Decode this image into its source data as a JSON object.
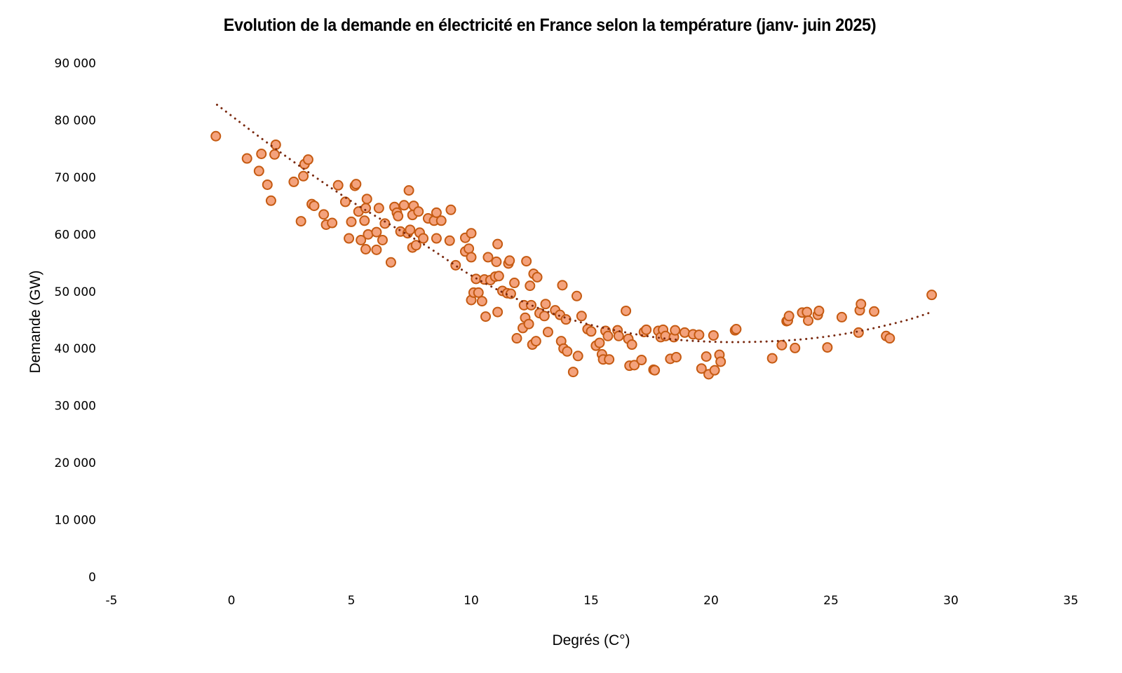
{
  "chart_data": {
    "type": "scatter",
    "title": "Evolution de la demande en électricité en France selon la température (janv- juin 2025)",
    "xlabel": "Degrés (C°)",
    "ylabel": "Demande (GW)",
    "xlim": [
      -5,
      35
    ],
    "ylim": [
      0,
      90000
    ],
    "x_ticks": [
      -5,
      0,
      5,
      10,
      15,
      20,
      25,
      30,
      35
    ],
    "x_tick_labels": [
      "-5",
      "0",
      "5",
      "10",
      "15",
      "20",
      "25",
      "30",
      "35"
    ],
    "y_ticks": [
      0,
      10000,
      20000,
      30000,
      40000,
      50000,
      60000,
      70000,
      80000,
      90000
    ],
    "y_tick_labels": [
      "0",
      "10 000",
      "20 000",
      "30 000",
      "40 000",
      "50 000",
      "60 000",
      "70 000",
      "80 000",
      "90 000"
    ],
    "grid": false,
    "legend": "none",
    "colors": {
      "marker_fill": "#f4a27c",
      "marker_stroke": "#c55a11",
      "trendline": "#7a2a10"
    },
    "trendline": {
      "type": "polynomial-2",
      "style": "dotted",
      "x_range": [
        -0.6,
        29.2
      ],
      "points": [
        [
          -0.6,
          82700
        ],
        [
          2,
          74500
        ],
        [
          5,
          65800
        ],
        [
          8,
          58300
        ],
        [
          10,
          52800
        ],
        [
          12,
          48500
        ],
        [
          14,
          45300
        ],
        [
          16,
          43200
        ],
        [
          18,
          41800
        ],
        [
          20,
          41200
        ],
        [
          22,
          41200
        ],
        [
          24,
          41700
        ],
        [
          26,
          42900
        ],
        [
          28,
          44800
        ],
        [
          29.2,
          46400
        ]
      ]
    },
    "series": [
      {
        "name": "Demande",
        "points": [
          [
            -0.65,
            77200
          ],
          [
            0.65,
            73300
          ],
          [
            1.15,
            71100
          ],
          [
            1.25,
            74100
          ],
          [
            1.5,
            68700
          ],
          [
            1.65,
            65900
          ],
          [
            1.8,
            74000
          ],
          [
            1.85,
            75700
          ],
          [
            2.6,
            69200
          ],
          [
            2.9,
            62300
          ],
          [
            3.0,
            70200
          ],
          [
            3.05,
            72300
          ],
          [
            3.2,
            73100
          ],
          [
            3.35,
            65300
          ],
          [
            3.45,
            65000
          ],
          [
            3.85,
            63500
          ],
          [
            3.95,
            61700
          ],
          [
            4.2,
            62000
          ],
          [
            4.45,
            68600
          ],
          [
            4.75,
            65700
          ],
          [
            4.9,
            59300
          ],
          [
            5.0,
            62200
          ],
          [
            5.15,
            68500
          ],
          [
            5.2,
            68800
          ],
          [
            5.3,
            64000
          ],
          [
            5.4,
            59000
          ],
          [
            5.55,
            62400
          ],
          [
            5.6,
            64600
          ],
          [
            5.6,
            57400
          ],
          [
            5.65,
            66200
          ],
          [
            5.7,
            60000
          ],
          [
            6.05,
            60400
          ],
          [
            6.05,
            57300
          ],
          [
            6.15,
            64600
          ],
          [
            6.3,
            59000
          ],
          [
            6.4,
            61900
          ],
          [
            6.65,
            55100
          ],
          [
            6.8,
            64800
          ],
          [
            6.9,
            63800
          ],
          [
            6.95,
            63200
          ],
          [
            7.05,
            60500
          ],
          [
            7.2,
            65100
          ],
          [
            7.35,
            60200
          ],
          [
            7.4,
            67700
          ],
          [
            7.45,
            60800
          ],
          [
            7.55,
            63400
          ],
          [
            7.55,
            57700
          ],
          [
            7.6,
            65000
          ],
          [
            7.7,
            58100
          ],
          [
            7.8,
            64000
          ],
          [
            7.85,
            60300
          ],
          [
            8.0,
            59300
          ],
          [
            8.2,
            62800
          ],
          [
            8.45,
            62400
          ],
          [
            8.55,
            59300
          ],
          [
            8.55,
            63800
          ],
          [
            8.75,
            62400
          ],
          [
            9.1,
            58900
          ],
          [
            9.15,
            64300
          ],
          [
            9.35,
            54600
          ],
          [
            9.75,
            59400
          ],
          [
            9.75,
            57000
          ],
          [
            9.9,
            57500
          ],
          [
            10.0,
            60200
          ],
          [
            10.0,
            56000
          ],
          [
            10.0,
            48500
          ],
          [
            10.1,
            49800
          ],
          [
            10.2,
            52200
          ],
          [
            10.3,
            49800
          ],
          [
            10.45,
            48300
          ],
          [
            10.55,
            52100
          ],
          [
            10.6,
            45600
          ],
          [
            10.7,
            56000
          ],
          [
            10.8,
            52000
          ],
          [
            11.0,
            52600
          ],
          [
            11.05,
            55200
          ],
          [
            11.1,
            58300
          ],
          [
            11.1,
            46400
          ],
          [
            11.15,
            52700
          ],
          [
            11.3,
            50100
          ],
          [
            11.5,
            49700
          ],
          [
            11.55,
            54900
          ],
          [
            11.6,
            55400
          ],
          [
            11.65,
            49600
          ],
          [
            11.8,
            51500
          ],
          [
            11.9,
            41800
          ],
          [
            12.15,
            43600
          ],
          [
            12.2,
            47600
          ],
          [
            12.25,
            45400
          ],
          [
            12.3,
            55300
          ],
          [
            12.4,
            44300
          ],
          [
            12.45,
            51000
          ],
          [
            12.5,
            47600
          ],
          [
            12.55,
            40700
          ],
          [
            12.6,
            53100
          ],
          [
            12.7,
            41300
          ],
          [
            12.75,
            52500
          ],
          [
            12.85,
            46200
          ],
          [
            13.05,
            45700
          ],
          [
            13.1,
            47800
          ],
          [
            13.2,
            42900
          ],
          [
            13.5,
            46700
          ],
          [
            13.7,
            45900
          ],
          [
            13.75,
            41300
          ],
          [
            13.8,
            51100
          ],
          [
            13.85,
            40000
          ],
          [
            13.95,
            45100
          ],
          [
            14.0,
            39500
          ],
          [
            14.25,
            35900
          ],
          [
            14.4,
            49200
          ],
          [
            14.45,
            38700
          ],
          [
            14.6,
            45700
          ],
          [
            14.85,
            43400
          ],
          [
            15.0,
            43000
          ],
          [
            15.2,
            40500
          ],
          [
            15.35,
            41000
          ],
          [
            15.45,
            39000
          ],
          [
            15.5,
            38100
          ],
          [
            15.6,
            43100
          ],
          [
            15.7,
            42200
          ],
          [
            15.75,
            38100
          ],
          [
            16.1,
            43200
          ],
          [
            16.15,
            42200
          ],
          [
            16.45,
            46600
          ],
          [
            16.55,
            41700
          ],
          [
            16.6,
            37000
          ],
          [
            16.7,
            40700
          ],
          [
            16.8,
            37100
          ],
          [
            17.1,
            38000
          ],
          [
            17.2,
            42900
          ],
          [
            17.3,
            43300
          ],
          [
            17.6,
            36300
          ],
          [
            17.65,
            36200
          ],
          [
            17.8,
            43100
          ],
          [
            17.9,
            42000
          ],
          [
            18.0,
            43300
          ],
          [
            18.1,
            42200
          ],
          [
            18.3,
            38200
          ],
          [
            18.45,
            42000
          ],
          [
            18.5,
            43200
          ],
          [
            18.55,
            38500
          ],
          [
            18.9,
            42800
          ],
          [
            19.25,
            42500
          ],
          [
            19.5,
            42400
          ],
          [
            19.6,
            36500
          ],
          [
            19.8,
            38600
          ],
          [
            19.9,
            35500
          ],
          [
            20.1,
            42300
          ],
          [
            20.15,
            36200
          ],
          [
            20.35,
            38900
          ],
          [
            20.4,
            37700
          ],
          [
            21.0,
            43200
          ],
          [
            21.05,
            43400
          ],
          [
            22.55,
            38300
          ],
          [
            22.95,
            40600
          ],
          [
            23.15,
            44800
          ],
          [
            23.2,
            44900
          ],
          [
            23.25,
            45700
          ],
          [
            23.5,
            40100
          ],
          [
            23.8,
            46300
          ],
          [
            24.0,
            46400
          ],
          [
            24.05,
            44900
          ],
          [
            24.45,
            45900
          ],
          [
            24.5,
            46600
          ],
          [
            24.85,
            40200
          ],
          [
            25.45,
            45500
          ],
          [
            26.15,
            42800
          ],
          [
            26.2,
            46700
          ],
          [
            26.25,
            47800
          ],
          [
            26.8,
            46500
          ],
          [
            27.3,
            42200
          ],
          [
            27.45,
            41800
          ],
          [
            29.2,
            49400
          ]
        ]
      }
    ]
  }
}
